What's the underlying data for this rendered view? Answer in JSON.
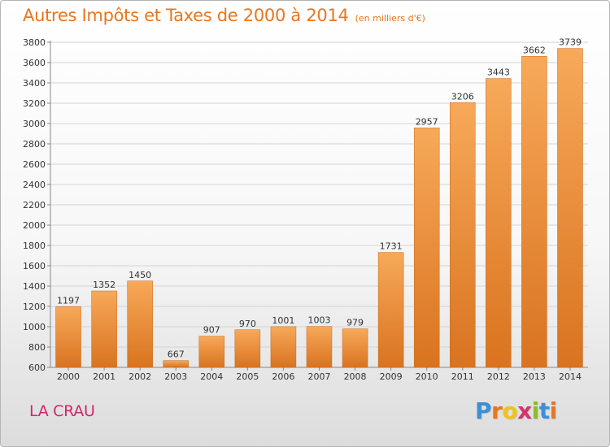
{
  "chart_data": {
    "type": "bar",
    "title": "Autres Impôts et Taxes de 2000 à 2014",
    "unit_label": "(en milliers d'€)",
    "categories": [
      "2000",
      "2001",
      "2002",
      "2003",
      "2004",
      "2005",
      "2006",
      "2007",
      "2008",
      "2009",
      "2010",
      "2011",
      "2012",
      "2013",
      "2014"
    ],
    "values": [
      1197,
      1352,
      1450,
      667,
      907,
      970,
      1001,
      1003,
      979,
      1731,
      2957,
      3206,
      3443,
      3662,
      3739
    ],
    "ylim": [
      600,
      3800
    ],
    "yticks": [
      600,
      800,
      1000,
      1200,
      1400,
      1600,
      1800,
      2000,
      2200,
      2400,
      2600,
      2800,
      3000,
      3200,
      3400,
      3600,
      3800
    ],
    "grid": true,
    "xlabel": "",
    "ylabel": "",
    "bar_color_light": "#f7a95a",
    "bar_color_dark": "#d9731f"
  },
  "footer": {
    "town": "LA CRAU",
    "brand_letters": [
      "P",
      "r",
      "o",
      "x",
      "i",
      "t",
      "i"
    ],
    "brand_colors": [
      "#3c8fd6",
      "#e8761e",
      "#f2c21a",
      "#d6336c",
      "#8dbb2b",
      "#3c8fd6",
      "#e8761e"
    ]
  }
}
